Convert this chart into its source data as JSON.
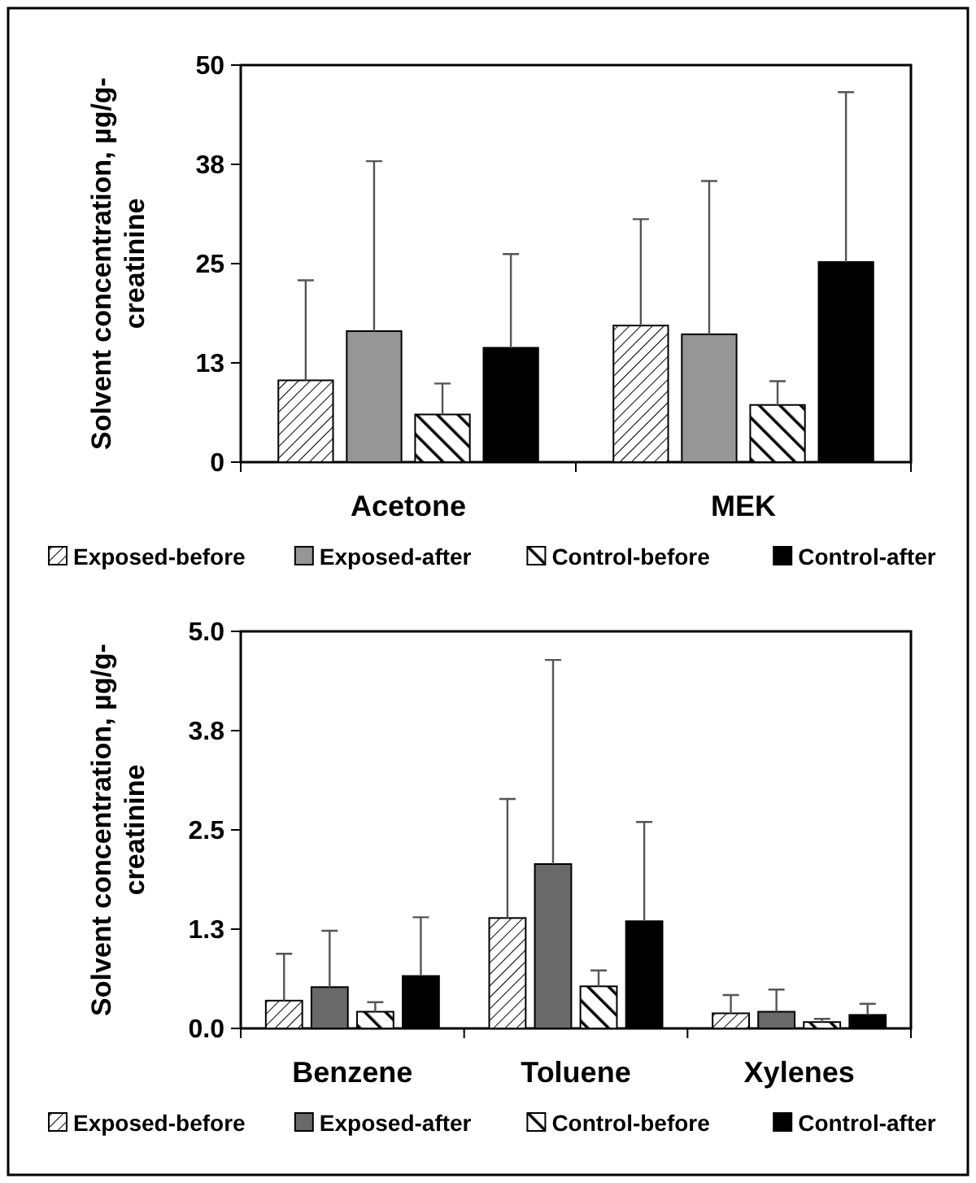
{
  "chart_data": [
    {
      "type": "bar",
      "ylabel": "Solvent concentration, µg/g-creatinine",
      "categories": [
        "Acetone",
        "MEK"
      ],
      "ylim": [
        0,
        50
      ],
      "yticks": [
        0,
        {
          "value": 12.5,
          "label": "13"
        },
        25,
        {
          "value": 37.5,
          "label": "38"
        },
        50
      ],
      "grid": false,
      "legend": "bottom",
      "series": [
        {
          "name": "Exposed-before",
          "color": "#000000",
          "values": [
            10.3,
            17.2
          ],
          "errors": [
            [
              10.3,
              22.9
            ],
            [
              17.2,
              30.6
            ]
          ]
        },
        {
          "name": "Exposed-after",
          "color": "#969696",
          "values": [
            16.5,
            16.1
          ],
          "errors": [
            [
              16.5,
              37.9
            ],
            [
              16.1,
              35.4
            ]
          ]
        },
        {
          "name": "Control-before",
          "color": "#000000",
          "values": [
            6.0,
            7.2
          ],
          "errors": [
            [
              6.0,
              9.9
            ],
            [
              7.2,
              10.2
            ]
          ]
        },
        {
          "name": "Control-after",
          "color": "#000000",
          "values": [
            14.4,
            25.2
          ],
          "errors": [
            [
              14.4,
              26.2
            ],
            [
              25.2,
              46.6
            ]
          ]
        }
      ]
    },
    {
      "type": "bar",
      "ylabel": "Solvent concentration, µg/g-creatinine",
      "categories": [
        "Benzene",
        "Toluene",
        "Xylenes"
      ],
      "ylim": [
        0,
        5
      ],
      "yticks": [
        {
          "value": 0,
          "label": "0.0"
        },
        {
          "value": 1.25,
          "label": "1.3"
        },
        {
          "value": 2.5,
          "label": "2.5"
        },
        {
          "value": 3.75,
          "label": "3.8"
        },
        {
          "value": 5,
          "label": "5.0"
        }
      ],
      "grid": false,
      "legend": "bottom",
      "series": [
        {
          "name": "Exposed-before",
          "color": "#000000",
          "values": [
            0.35,
            1.39,
            0.19
          ],
          "errors": [
            [
              0.35,
              0.94
            ],
            [
              1.39,
              2.89
            ],
            [
              0.19,
              0.42
            ]
          ]
        },
        {
          "name": "Exposed-after",
          "color": "#696969",
          "values": [
            0.52,
            2.07,
            0.21
          ],
          "errors": [
            [
              0.52,
              1.23
            ],
            [
              2.07,
              4.64
            ],
            [
              0.21,
              0.49
            ]
          ]
        },
        {
          "name": "Control-before",
          "color": "#000000",
          "values": [
            0.21,
            0.53,
            0.08
          ],
          "errors": [
            [
              0.21,
              0.33
            ],
            [
              0.53,
              0.73
            ],
            [
              0.08,
              0.12
            ]
          ]
        },
        {
          "name": "Control-after",
          "color": "#000000",
          "values": [
            0.66,
            1.35,
            0.17
          ],
          "errors": [
            [
              0.66,
              1.4
            ],
            [
              1.35,
              2.6
            ],
            [
              0.17,
              0.31
            ]
          ]
        }
      ]
    }
  ]
}
